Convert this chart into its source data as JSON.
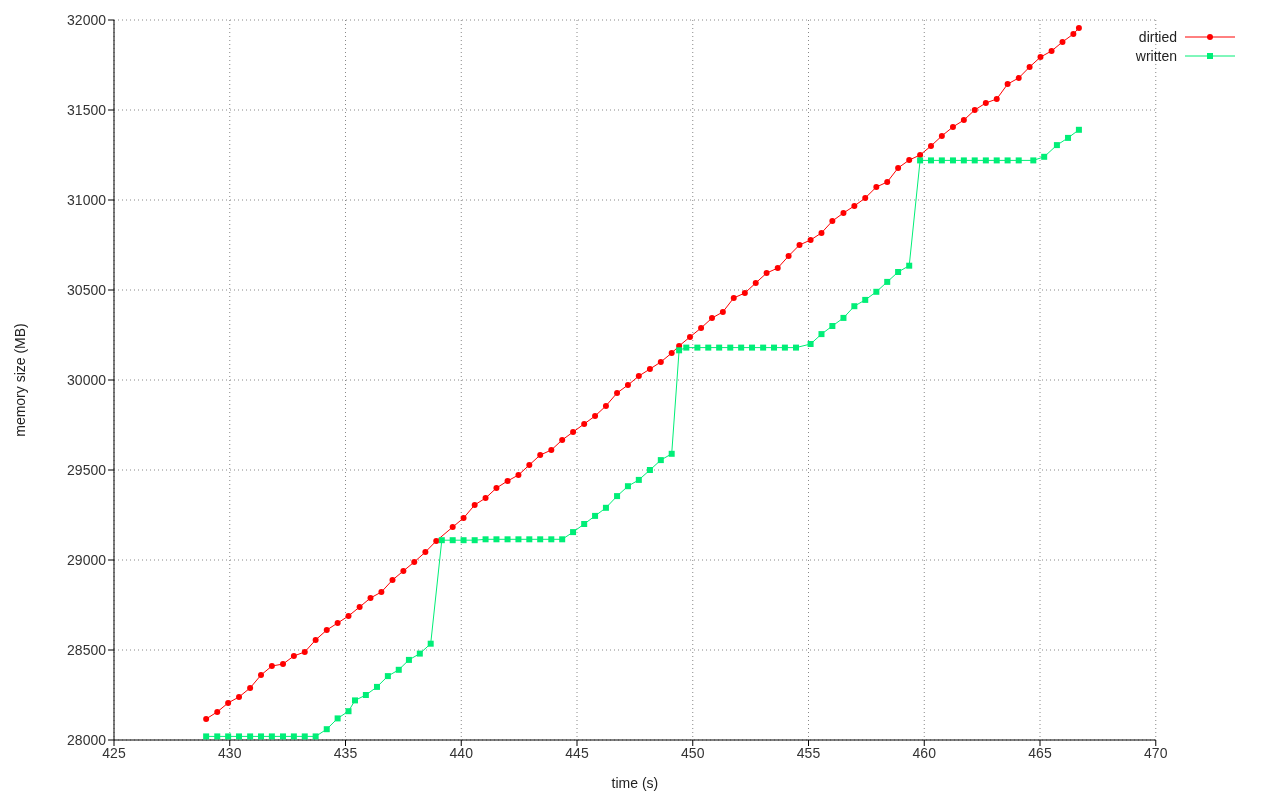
{
  "chart_data": {
    "type": "line",
    "xlabel": "time (s)",
    "ylabel": "memory size (MB)",
    "xlim": [
      425,
      470
    ],
    "xticks": [
      425,
      430,
      435,
      440,
      445,
      450,
      455,
      460,
      465,
      470
    ],
    "ylim": [
      28000,
      32000
    ],
    "yticks": [
      28000,
      28500,
      29000,
      29500,
      30000,
      30500,
      31000,
      31500,
      32000
    ],
    "grid": true,
    "legend": "top right",
    "series": [
      {
        "name": "dirtied",
        "color": "#ff0000",
        "marker": "circle",
        "x": [
          428.98,
          429.46,
          429.93,
          430.4,
          430.88,
          431.35,
          431.82,
          432.3,
          432.77,
          433.24,
          433.71,
          434.19,
          434.66,
          435.13,
          435.61,
          436.08,
          436.55,
          437.03,
          437.5,
          437.97,
          438.45,
          438.92,
          439.63,
          440.1,
          440.58,
          441.05,
          441.52,
          442,
          442.47,
          442.94,
          443.41,
          443.89,
          444.36,
          444.83,
          445.31,
          445.78,
          446.25,
          446.73,
          447.2,
          447.67,
          448.15,
          448.62,
          449.09,
          449.41,
          449.88,
          450.36,
          450.83,
          451.3,
          451.77,
          452.25,
          452.72,
          453.19,
          453.67,
          454.14,
          454.61,
          455.09,
          455.56,
          456.03,
          456.51,
          456.98,
          457.45,
          457.93,
          458.4,
          458.87,
          459.35,
          459.82,
          460.29,
          460.76,
          461.24,
          461.71,
          462.18,
          462.66,
          463.13,
          463.6,
          464.08,
          464.55,
          465.02,
          465.5,
          465.97,
          466.44,
          466.68
        ],
        "values": [
          28117,
          28156,
          28206,
          28239,
          28289,
          28361,
          28411,
          28422,
          28467,
          28489,
          28556,
          28611,
          28650,
          28689,
          28739,
          28789,
          28822,
          28889,
          28939,
          28989,
          29044,
          29106,
          29183,
          29233,
          29306,
          29344,
          29400,
          29439,
          29472,
          29528,
          29583,
          29611,
          29667,
          29711,
          29756,
          29800,
          29856,
          29928,
          29972,
          30022,
          30061,
          30100,
          30150,
          30189,
          30239,
          30289,
          30344,
          30378,
          30456,
          30483,
          30539,
          30594,
          30622,
          30689,
          30750,
          30778,
          30817,
          30883,
          30928,
          30967,
          31011,
          31072,
          31100,
          31178,
          31222,
          31250,
          31300,
          31356,
          31406,
          31444,
          31500,
          31539,
          31561,
          31644,
          31678,
          31739,
          31794,
          31828,
          31878,
          31922,
          31956
        ]
      },
      {
        "name": "written",
        "color": "#00ee77",
        "marker": "square",
        "x": [
          428.98,
          429.46,
          429.93,
          430.4,
          430.88,
          431.35,
          431.82,
          432.3,
          432.77,
          433.24,
          433.71,
          434.19,
          434.66,
          435.13,
          435.41,
          435.88,
          436.36,
          436.83,
          437.3,
          437.74,
          438.21,
          438.68,
          439.16,
          439.63,
          440.1,
          440.58,
          441.05,
          441.52,
          442,
          442.47,
          442.94,
          443.41,
          443.89,
          444.36,
          444.83,
          445.31,
          445.78,
          446.25,
          446.73,
          447.2,
          447.67,
          448.15,
          448.62,
          449.09,
          449.41,
          449.72,
          450.2,
          450.67,
          451.14,
          451.62,
          452.09,
          452.56,
          453.04,
          453.51,
          453.98,
          454.46,
          455.09,
          455.56,
          456.03,
          456.51,
          456.98,
          457.45,
          457.93,
          458.4,
          458.87,
          459.35,
          459.82,
          460.29,
          460.76,
          461.24,
          461.71,
          462.18,
          462.66,
          463.13,
          463.6,
          464.08,
          464.71,
          465.18,
          465.73,
          466.21,
          466.68
        ],
        "values": [
          28020,
          28020,
          28020,
          28020,
          28020,
          28020,
          28020,
          28020,
          28020,
          28020,
          28020,
          28060,
          28120,
          28160,
          28220,
          28250,
          28295,
          28355,
          28390,
          28445,
          28480,
          28535,
          29110,
          29110,
          29110,
          29110,
          29115,
          29115,
          29115,
          29115,
          29115,
          29115,
          29115,
          29115,
          29155,
          29200,
          29245,
          29290,
          29355,
          29410,
          29445,
          29500,
          29555,
          29590,
          30165,
          30180,
          30180,
          30180,
          30180,
          30180,
          30180,
          30180,
          30180,
          30180,
          30180,
          30180,
          30200,
          30255,
          30300,
          30345,
          30410,
          30445,
          30490,
          30545,
          30600,
          30635,
          31220,
          31220,
          31220,
          31220,
          31220,
          31220,
          31220,
          31220,
          31220,
          31220,
          31220,
          31240,
          31305,
          31345,
          31390
        ]
      }
    ]
  }
}
